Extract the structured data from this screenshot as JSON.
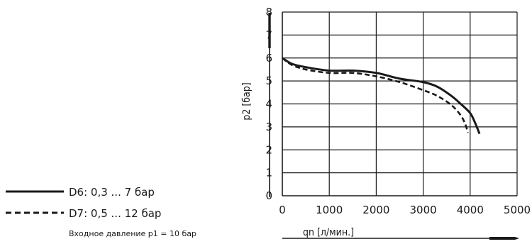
{
  "chart_data": {
    "type": "line",
    "title": "",
    "xlabel": "qn [л/мин.]",
    "ylabel": "p2 [бар]",
    "xlim": [
      0,
      5000
    ],
    "ylim": [
      0,
      8
    ],
    "x_ticks": [
      0,
      1000,
      2000,
      3000,
      4000,
      5000
    ],
    "y_ticks": [
      0,
      1,
      2,
      3,
      4,
      5,
      6,
      7,
      8
    ],
    "grid": true,
    "legend_position": "left",
    "series": [
      {
        "name": "D6: 0,3 ... 7 бар",
        "style": "solid",
        "x": [
          0,
          200,
          500,
          1000,
          1500,
          2000,
          2500,
          3000,
          3300,
          3600,
          3800,
          4000,
          4100,
          4200
        ],
        "y": [
          6.0,
          5.75,
          5.6,
          5.45,
          5.45,
          5.35,
          5.1,
          4.95,
          4.75,
          4.35,
          4.0,
          3.6,
          3.2,
          2.7
        ]
      },
      {
        "name": "D7: 0,5 ... 12 бар",
        "style": "dashed",
        "x": [
          0,
          200,
          500,
          1000,
          1500,
          2000,
          2500,
          3000,
          3300,
          3600,
          3800,
          3900,
          3950
        ],
        "y": [
          6.0,
          5.7,
          5.5,
          5.35,
          5.35,
          5.2,
          4.95,
          4.6,
          4.35,
          3.95,
          3.5,
          3.1,
          2.75
        ]
      }
    ]
  },
  "note": "Входное давление p1 = 10 бар",
  "colors": {
    "line": "#1a1a1a",
    "grid": "#1a1a1a",
    "background": "#ffffff"
  }
}
